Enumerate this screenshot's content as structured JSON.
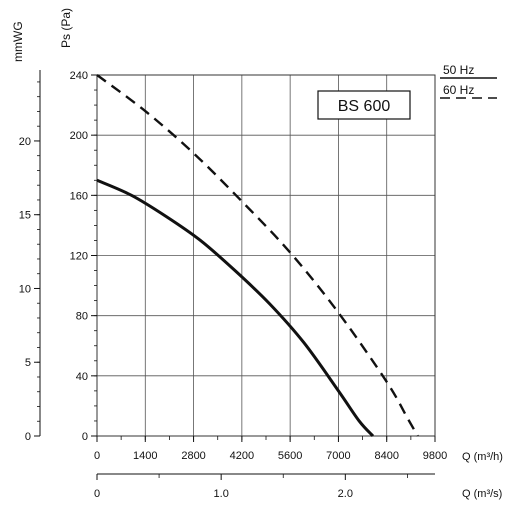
{
  "chart_data": {
    "type": "line",
    "title": "",
    "model_label": "BS 600",
    "x_axis_primary": {
      "label": "Q (m³/h)",
      "range": [
        0,
        9800
      ],
      "major_ticks": [
        0,
        1400,
        2800,
        4200,
        5600,
        7000,
        8400,
        9800
      ],
      "tick_labels": [
        "0",
        "1400",
        "2800",
        "4200",
        "5600",
        "7000",
        "8400",
        "9800"
      ]
    },
    "x_axis_secondary": {
      "label": "Q (m³/s)",
      "range": [
        0,
        2.7222
      ],
      "tick_values": [
        0,
        1.0,
        2.0
      ],
      "tick_labels": [
        "0",
        "1.0",
        "2.0"
      ]
    },
    "y_axis_primary": {
      "label": "Ps (Pa)",
      "range": [
        0,
        240
      ],
      "major_ticks": [
        0,
        40,
        80,
        120,
        160,
        200,
        240
      ],
      "tick_labels": [
        "0",
        "40",
        "80",
        "120",
        "160",
        "200",
        "240"
      ]
    },
    "y_axis_secondary": {
      "label": "mmWG",
      "range": [
        0,
        24.47
      ],
      "tick_values": [
        0,
        5,
        10,
        15,
        20
      ],
      "tick_labels": [
        "0",
        "5",
        "10",
        "15",
        "20"
      ]
    },
    "legend": {
      "placement": "top-right",
      "entries": [
        "50 Hz",
        "60 Hz"
      ]
    },
    "grid": true,
    "series": [
      {
        "name": "50 Hz",
        "style": "solid",
        "color": "#111111",
        "x": [
          0,
          1000,
          2000,
          3000,
          4000,
          5000,
          6000,
          7000,
          7600,
          8000
        ],
        "y": [
          170,
          160,
          146,
          130,
          110,
          88,
          62,
          30,
          10,
          0
        ]
      },
      {
        "name": "60 Hz",
        "style": "dashed",
        "color": "#111111",
        "x": [
          0,
          1400,
          2800,
          4200,
          5600,
          7000,
          8400,
          9000,
          9300
        ],
        "y": [
          240,
          216,
          188,
          156,
          122,
          82,
          36,
          12,
          0
        ]
      }
    ]
  }
}
